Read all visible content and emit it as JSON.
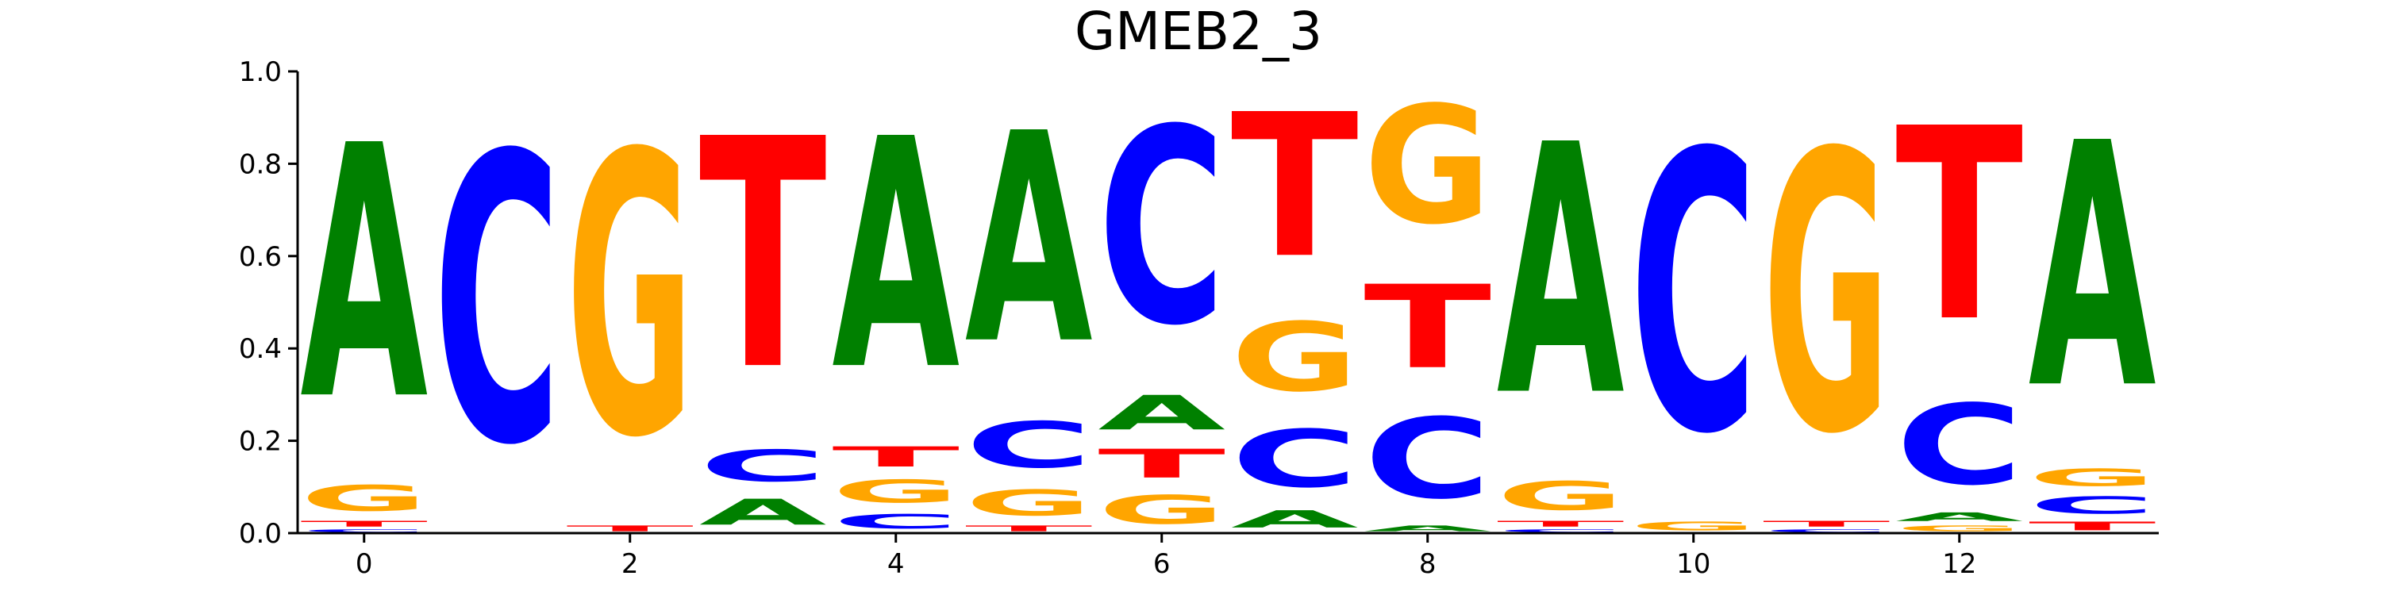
{
  "chart_data": {
    "type": "sequence-logo",
    "title": "GMEB2_3",
    "xlabel": "",
    "ylabel": "",
    "ylim": [
      0,
      1
    ],
    "xlim": [
      -0.5,
      13.5
    ],
    "yticks": [
      "0.0",
      "0.2",
      "0.4",
      "0.6",
      "0.8",
      "1.0"
    ],
    "xticks": [
      {
        "value": 0,
        "label": "0"
      },
      {
        "value": 2,
        "label": "2"
      },
      {
        "value": 4,
        "label": "4"
      },
      {
        "value": 6,
        "label": "6"
      },
      {
        "value": 8,
        "label": "8"
      },
      {
        "value": 10,
        "label": "10"
      },
      {
        "value": 12,
        "label": "12"
      }
    ],
    "colors": {
      "A": "#008000",
      "C": "#0000ff",
      "G": "#ffa500",
      "T": "#ff0000"
    },
    "positions": [
      {
        "pos": 0,
        "stack": [
          {
            "base": "C",
            "h": 0.01
          },
          {
            "base": "T",
            "h": 0.02
          },
          {
            "base": "G",
            "h": 0.09
          },
          {
            "base": "A",
            "h": 0.88
          }
        ]
      },
      {
        "pos": 1,
        "stack": [
          {
            "base": "C",
            "h": 1.0
          }
        ]
      },
      {
        "pos": 2,
        "stack": [
          {
            "base": "T",
            "h": 0.02
          },
          {
            "base": "G",
            "h": 0.98
          }
        ]
      },
      {
        "pos": 3,
        "stack": [
          {
            "base": "A",
            "h": 0.09
          },
          {
            "base": "C",
            "h": 0.11
          },
          {
            "base": "T",
            "h": 0.8
          }
        ]
      },
      {
        "pos": 4,
        "stack": [
          {
            "base": "C",
            "h": 0.05
          },
          {
            "base": "G",
            "h": 0.08
          },
          {
            "base": "T",
            "h": 0.07
          },
          {
            "base": "A",
            "h": 0.8
          }
        ]
      },
      {
        "pos": 5,
        "stack": [
          {
            "base": "T",
            "h": 0.02
          },
          {
            "base": "G",
            "h": 0.09
          },
          {
            "base": "C",
            "h": 0.16
          },
          {
            "base": "A",
            "h": 0.73
          }
        ]
      },
      {
        "pos": 6,
        "stack": [
          {
            "base": "G",
            "h": 0.1
          },
          {
            "base": "T",
            "h": 0.1
          },
          {
            "base": "A",
            "h": 0.12
          },
          {
            "base": "C",
            "h": 0.68
          }
        ]
      },
      {
        "pos": 7,
        "stack": [
          {
            "base": "A",
            "h": 0.06
          },
          {
            "base": "C",
            "h": 0.2
          },
          {
            "base": "G",
            "h": 0.24
          },
          {
            "base": "T",
            "h": 0.5
          }
        ]
      },
      {
        "pos": 8,
        "stack": [
          {
            "base": "A",
            "h": 0.02
          },
          {
            "base": "C",
            "h": 0.28
          },
          {
            "base": "T",
            "h": 0.29
          },
          {
            "base": "G",
            "h": 0.41
          }
        ]
      },
      {
        "pos": 9,
        "stack": [
          {
            "base": "C",
            "h": 0.01
          },
          {
            "base": "T",
            "h": 0.02
          },
          {
            "base": "G",
            "h": 0.1
          },
          {
            "base": "A",
            "h": 0.87
          }
        ]
      },
      {
        "pos": 10,
        "stack": [
          {
            "base": "G",
            "h": 0.03
          },
          {
            "base": "C",
            "h": 0.97
          }
        ]
      },
      {
        "pos": 11,
        "stack": [
          {
            "base": "C",
            "h": 0.01
          },
          {
            "base": "T",
            "h": 0.02
          },
          {
            "base": "G",
            "h": 0.97
          }
        ]
      },
      {
        "pos": 12,
        "stack": [
          {
            "base": "G",
            "h": 0.02
          },
          {
            "base": "A",
            "h": 0.03
          },
          {
            "base": "C",
            "h": 0.28
          },
          {
            "base": "T",
            "h": 0.67
          }
        ]
      },
      {
        "pos": 13,
        "stack": [
          {
            "base": "T",
            "h": 0.03
          },
          {
            "base": "C",
            "h": 0.06
          },
          {
            "base": "G",
            "h": 0.06
          },
          {
            "base": "A",
            "h": 0.85
          }
        ]
      }
    ]
  }
}
